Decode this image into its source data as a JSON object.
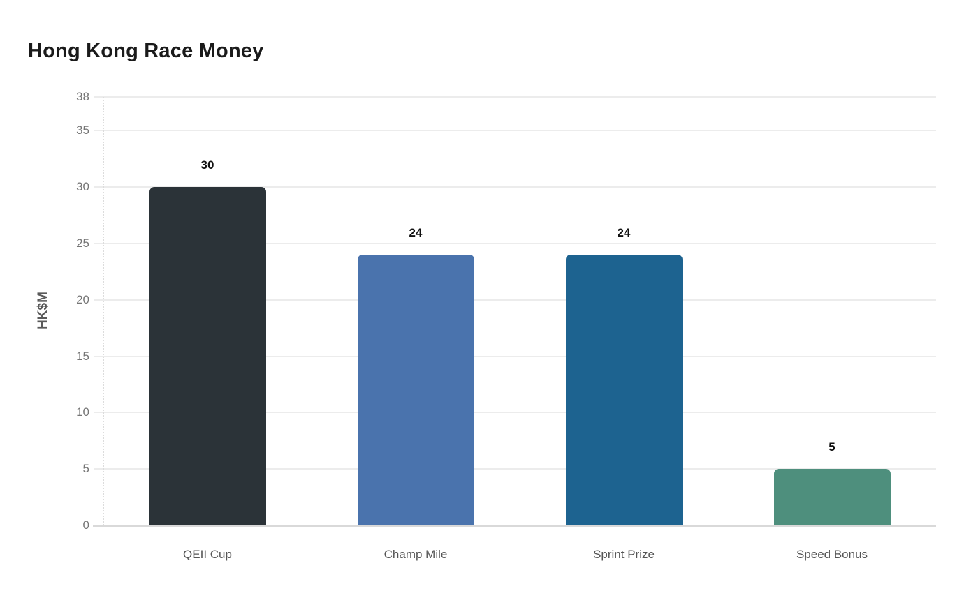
{
  "chart_data": {
    "type": "bar",
    "title": "Hong Kong Race Money",
    "categories": [
      "QEII Cup",
      "Champ Mile",
      "Sprint Prize",
      "Speed Bonus"
    ],
    "values": [
      30,
      24,
      24,
      5
    ],
    "bar_labels": [
      "30",
      "24",
      "24",
      "5"
    ],
    "bar_colors": [
      "#2b3338",
      "#4a73ad",
      "#1d6390",
      "#4e8f7d"
    ],
    "xlabel": "",
    "ylabel": "HK$M",
    "yticks": [
      0,
      5,
      10,
      15,
      20,
      25,
      30,
      35,
      38
    ],
    "ylim": [
      0,
      38
    ],
    "grid": "horizontal",
    "legend_position": "none",
    "colors": {
      "background": "#ffffff",
      "gridline": "#ececec",
      "axis_baseline": "#d9d9d9",
      "y_axis_dotted_line": "#dcdcdc",
      "tick_label": "#757575",
      "category_label": "#555555",
      "value_label": "#111111",
      "title": "#1a1a1a",
      "ylabel_text": "#5a5a5a"
    }
  }
}
